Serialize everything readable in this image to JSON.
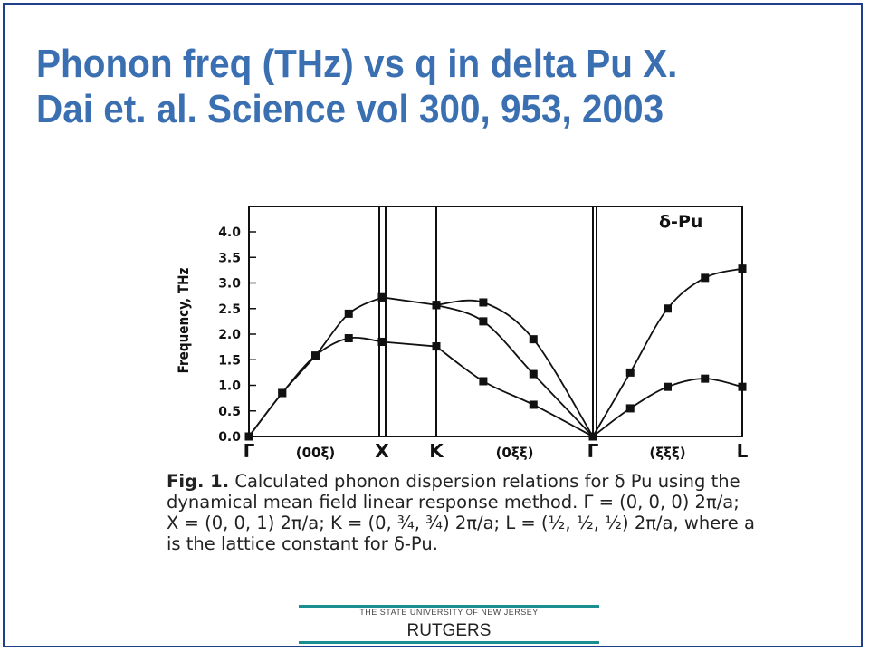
{
  "slide": {
    "title_line1": "Phonon freq (THz) vs q in delta Pu X.",
    "title_line2": "Dai et. al. Science vol 300, 953, 2003"
  },
  "caption": {
    "lead": "Fig. 1.",
    "text": "Calculated phonon dispersion relations for δ Pu using the dynamical mean field linear response method. Γ = (0, 0, 0) 2π/a; X = (0, 0, 1) 2π/a; K = (0, ¾, ¾) 2π/a; L = (½, ½, ½) 2π/a, where a is the lattice constant for δ-Pu."
  },
  "footer": {
    "university_line": "THE STATE UNIVERSITY OF NEW JERSEY",
    "name": "RUTGERS"
  },
  "chart_data": {
    "type": "line",
    "ylabel": "Frequency, THz",
    "ylim": [
      0,
      4.3
    ],
    "yticks": [
      "4.0",
      "3.5",
      "3.0",
      "2.5",
      "2.0",
      "1.5",
      "1.0",
      "0.5",
      "0.0"
    ],
    "ytick_values": [
      4.0,
      3.5,
      3.0,
      2.5,
      2.0,
      1.5,
      1.0,
      0.5,
      0.0
    ],
    "annotation": "δ-Pu",
    "x_labels": [
      {
        "text": "Γ",
        "seg": 0,
        "t": 0
      },
      {
        "text": "(00ξ)",
        "seg": 0,
        "t": 0.5
      },
      {
        "text": "X",
        "seg": 0,
        "t": 1
      },
      {
        "text": "K",
        "seg": 1,
        "t": 1
      },
      {
        "text": "(0ξξ)",
        "seg": 2,
        "t": 0.5
      },
      {
        "text": "Γ",
        "seg": 2,
        "t": 1
      },
      {
        "text": "(ξξξ)",
        "seg": 3,
        "t": 0.5
      },
      {
        "text": "L",
        "seg": 3,
        "t": 1
      }
    ],
    "segments": [
      {
        "name": "Γ-X (00ξ)",
        "series": [
          {
            "points": [
              [
                0,
                0
              ],
              [
                0.25,
                0.85
              ],
              [
                0.5,
                1.58
              ],
              [
                0.75,
                2.4
              ],
              [
                1,
                2.72
              ]
            ]
          },
          {
            "points": [
              [
                0,
                0
              ],
              [
                0.25,
                0.85
              ],
              [
                0.5,
                1.58
              ],
              [
                0.75,
                1.92
              ],
              [
                1,
                1.85
              ]
            ]
          }
        ]
      },
      {
        "name": "X-K",
        "series": [
          {
            "points": [
              [
                0,
                2.72
              ],
              [
                1,
                2.57
              ]
            ]
          },
          {
            "points": [
              [
                0,
                1.85
              ],
              [
                1,
                1.76
              ]
            ]
          }
        ]
      },
      {
        "name": "K-Γ (0ξξ)",
        "series": [
          {
            "points": [
              [
                0,
                2.57
              ],
              [
                0.3,
                2.62
              ],
              [
                0.62,
                1.9
              ],
              [
                1,
                0
              ]
            ]
          },
          {
            "points": [
              [
                0,
                2.57
              ],
              [
                0.3,
                2.25
              ],
              [
                0.62,
                1.22
              ],
              [
                1,
                0
              ]
            ]
          },
          {
            "points": [
              [
                0,
                1.76
              ],
              [
                0.3,
                1.08
              ],
              [
                0.62,
                0.62
              ],
              [
                1,
                0
              ]
            ]
          }
        ]
      },
      {
        "name": "Γ-L (ξξξ)",
        "series": [
          {
            "points": [
              [
                0,
                0
              ],
              [
                0.25,
                1.25
              ],
              [
                0.5,
                2.5
              ],
              [
                0.75,
                3.1
              ],
              [
                1,
                3.28
              ]
            ]
          },
          {
            "points": [
              [
                0,
                0
              ],
              [
                0.25,
                0.55
              ],
              [
                0.5,
                0.97
              ],
              [
                0.75,
                1.13
              ],
              [
                1,
                0.97
              ]
            ]
          }
        ]
      }
    ]
  }
}
